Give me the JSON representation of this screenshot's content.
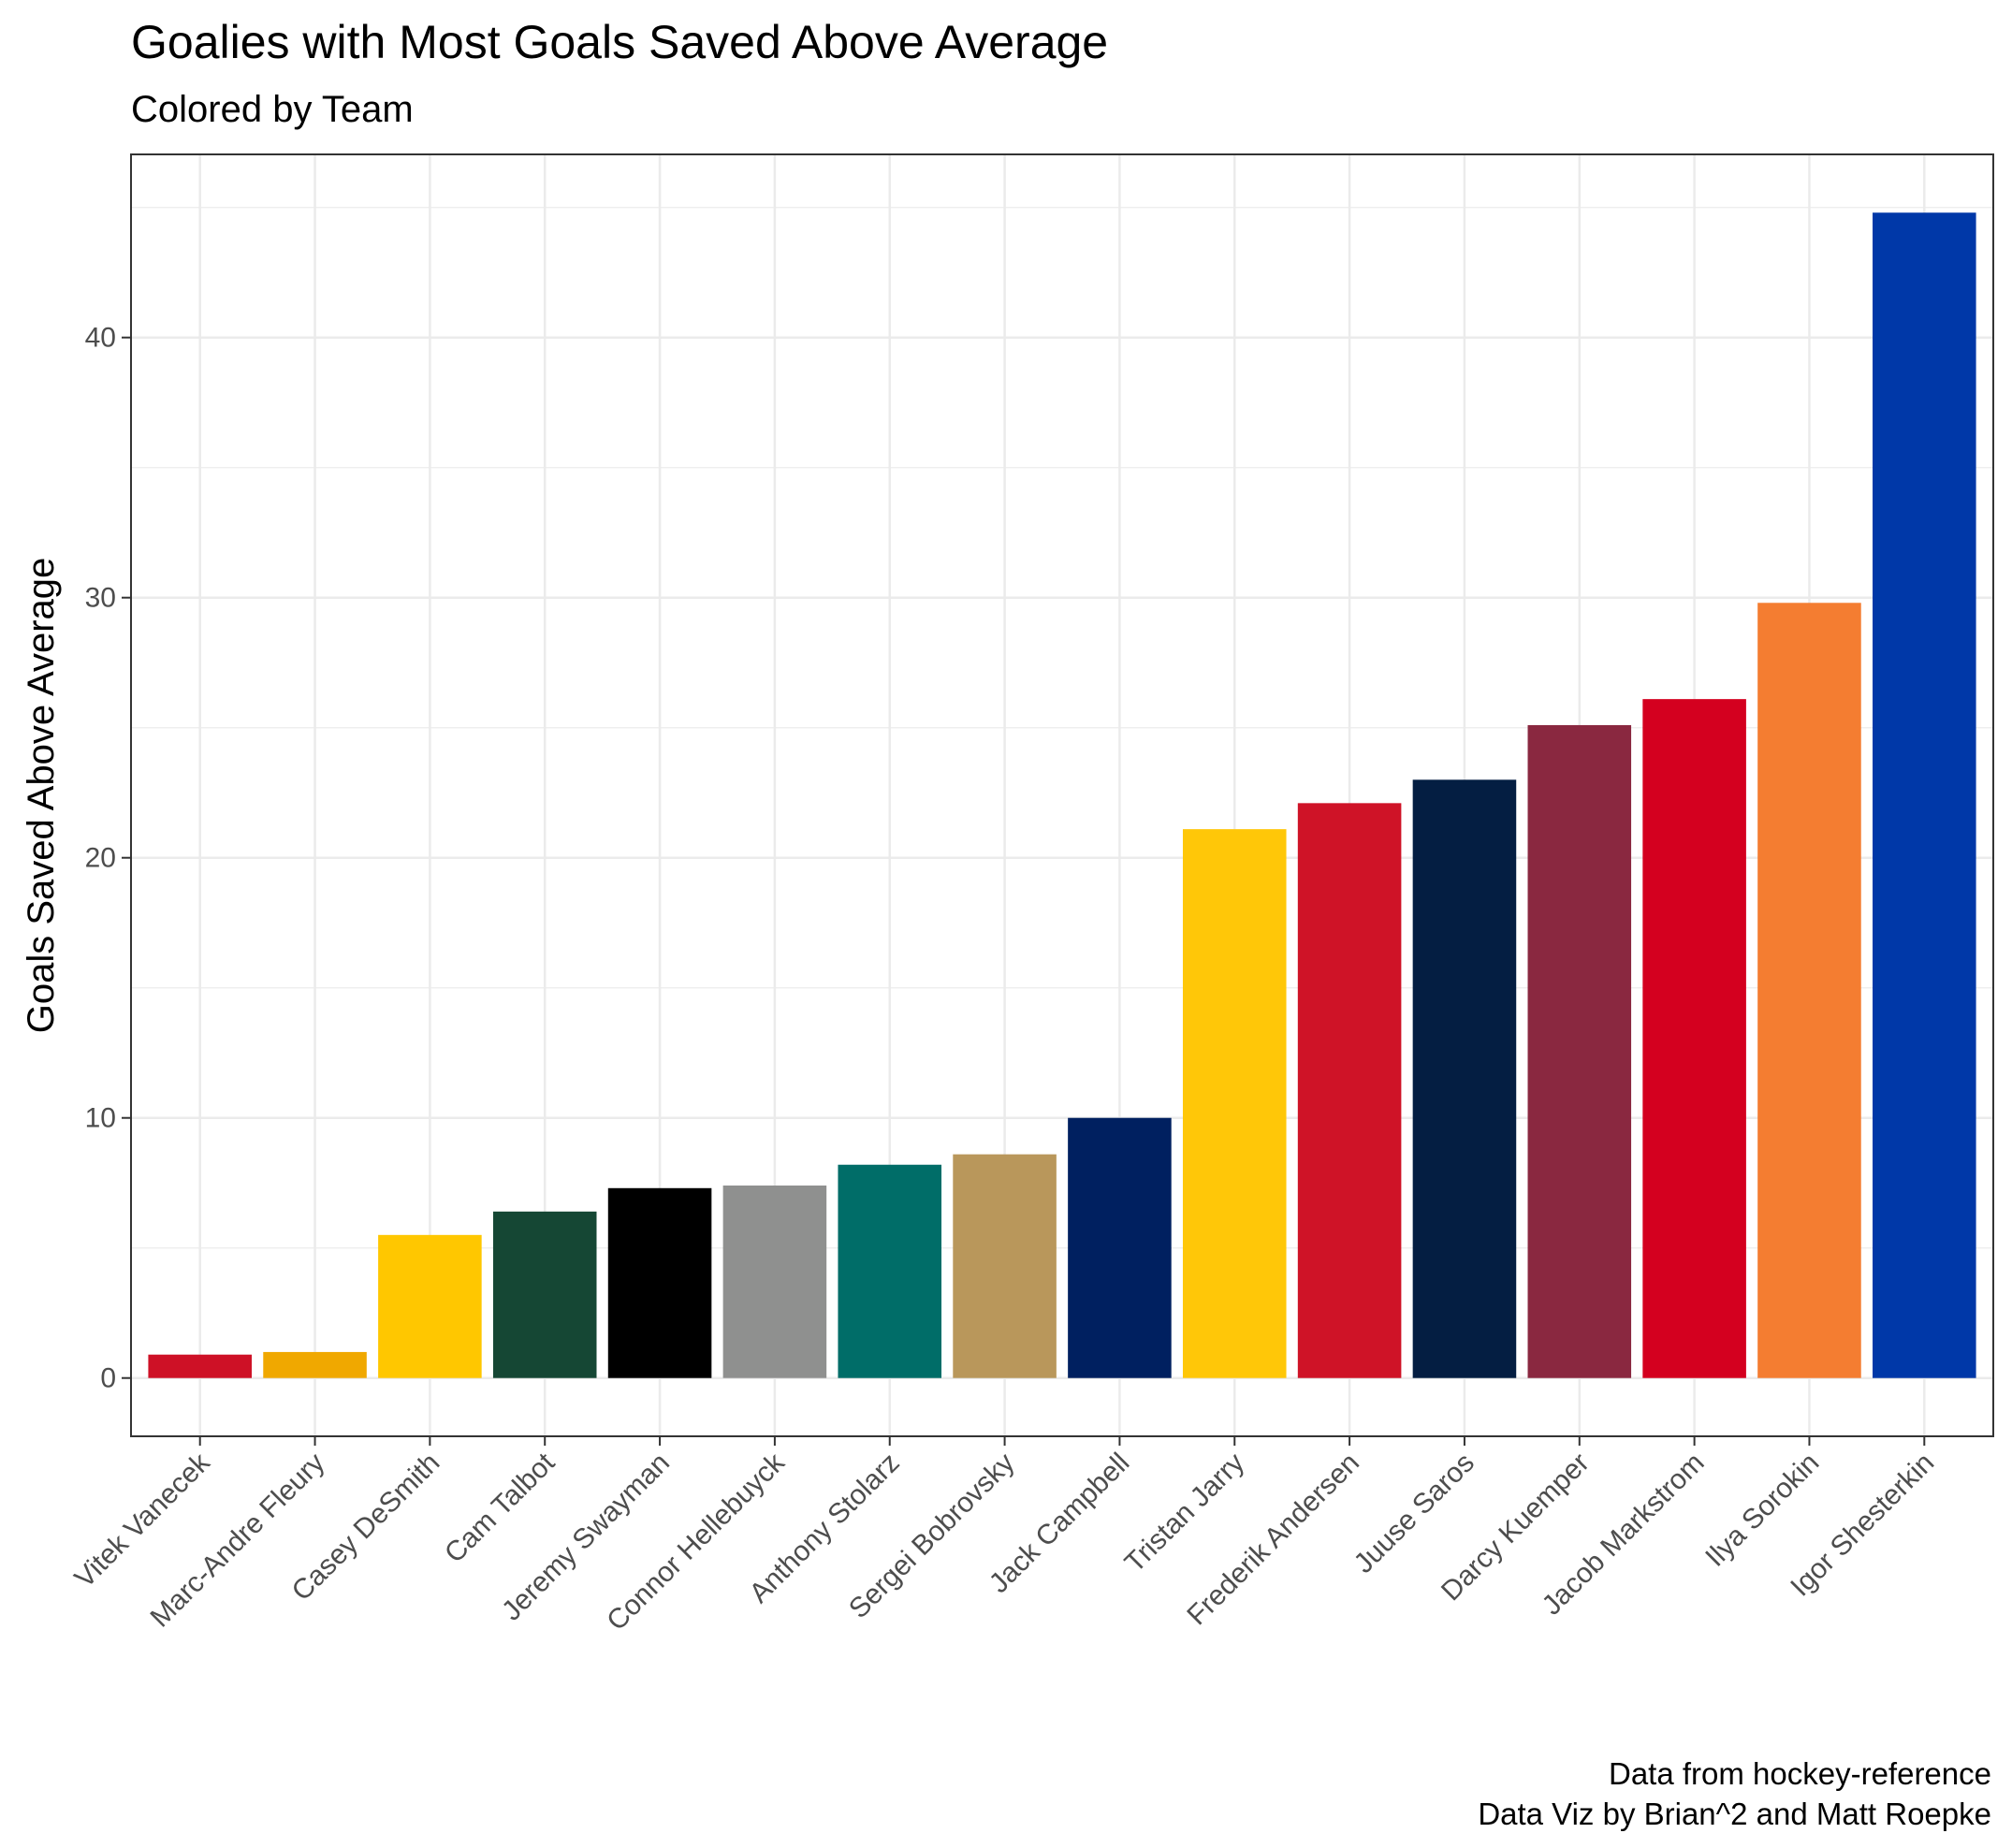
{
  "chart_data": {
    "type": "bar",
    "title": "Goalies with Most Goals Saved Above Average",
    "subtitle": "Colored by Team",
    "xlabel": "",
    "ylabel": "Goals Saved Above Average",
    "caption": [
      "Data from hockey-reference",
      "Data Viz by Brian^2 and Matt Roepke"
    ],
    "categories": [
      "Vitek Vanecek",
      "Marc-Andre Fleury",
      "Casey DeSmith",
      "Cam Talbot",
      "Jeremy Swayman",
      "Connor Hellebuyck",
      "Anthony Stolarz",
      "Sergei Bobrovsky",
      "Jack Campbell",
      "Tristan Jarry",
      "Frederik Andersen",
      "Juuse Saros",
      "Darcy Kuemper",
      "Jacob Markstrom",
      "Ilya Sorokin",
      "Igor Shesterkin"
    ],
    "values": [
      0.9,
      1.0,
      5.5,
      6.4,
      7.3,
      7.4,
      8.2,
      8.6,
      10.0,
      21.1,
      22.1,
      23.0,
      25.1,
      26.1,
      29.8,
      44.8
    ],
    "colors": [
      "#CE1126",
      "#F0A800",
      "#FFC700",
      "#154734",
      "#000000",
      "#8F908F",
      "#006D68",
      "#B9975B",
      "#002060",
      "#FFC708",
      "#CF1327",
      "#041E42",
      "#8A2840",
      "#D4001F",
      "#F47D31",
      "#0038A8"
    ],
    "yticks": [
      0,
      10,
      20,
      30,
      40
    ],
    "ylim": [
      -2.24,
      47.04
    ],
    "grid": true,
    "legend": "none"
  }
}
